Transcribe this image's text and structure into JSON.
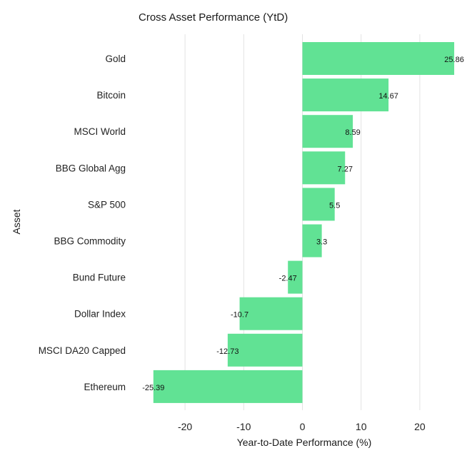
{
  "chart_data": {
    "type": "bar",
    "orientation": "horizontal",
    "title": "Cross Asset Performance (YtD)",
    "xlabel": "Year-to-Date Performance (%)",
    "ylabel": "Asset",
    "categories": [
      "Gold",
      "Bitcoin",
      "MSCI World",
      "BBG Global Agg",
      "S&P 500",
      "BBG Commodity",
      "Bund Future",
      "Dollar Index",
      "MSCI DA20 Capped",
      "Ethereum"
    ],
    "values": [
      25.86,
      14.67,
      8.59,
      7.27,
      5.5,
      3.3,
      -2.47,
      -10.7,
      -12.73,
      -25.39
    ],
    "data_labels": [
      "25.86",
      "14.67",
      "8.59",
      "7.27",
      "5.5",
      "3.3",
      "-2.47",
      "-10.7",
      "-12.73",
      "-25.39"
    ],
    "xticks": [
      -20,
      -10,
      0,
      10,
      20
    ],
    "xtick_labels": [
      "-20",
      "-10",
      "0",
      "10",
      "20"
    ],
    "xlim": [
      -26.5,
      26.5
    ],
    "grid": "vertical",
    "bar_color": "#61e294"
  }
}
